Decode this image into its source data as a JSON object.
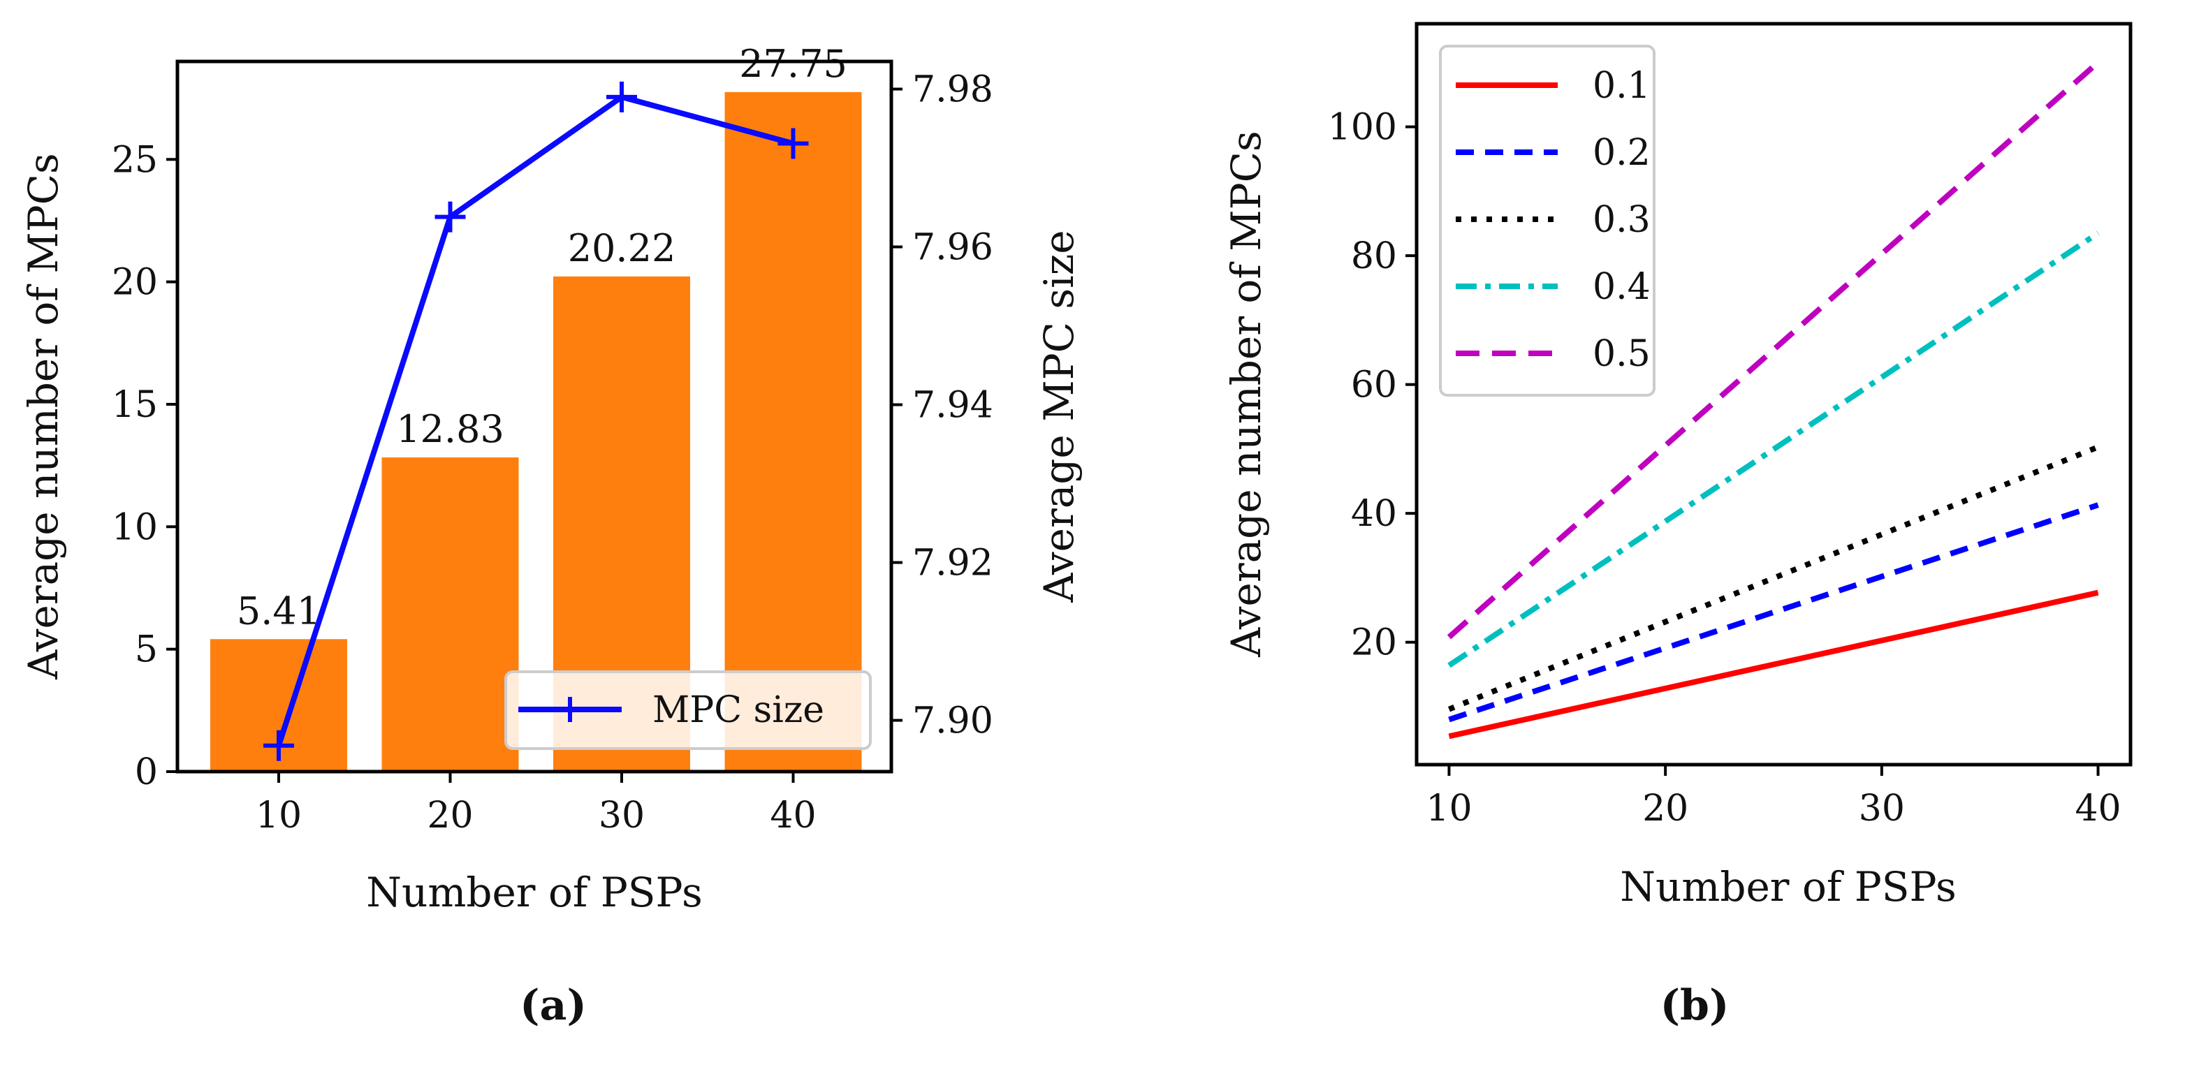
{
  "colors": {
    "bar": "#ff7f0e",
    "mpc_line": "#0a0aff",
    "axis": "#000000"
  },
  "chart_data": [
    {
      "type": "bar",
      "subcaption": "(a)",
      "categories": [
        "10",
        "20",
        "30",
        "40"
      ],
      "values": [
        5.41,
        12.83,
        20.22,
        27.75
      ],
      "data_labels": [
        "5.41",
        "12.83",
        "20.22",
        "27.75"
      ],
      "xlabel": "Number of PSPs",
      "ylabel": "Average number of MPCs",
      "ylim": [
        0,
        29
      ],
      "yticks": [
        0,
        5,
        10,
        15,
        20,
        25
      ],
      "bar_color": "#ff7f0e",
      "secondary_series": {
        "type": "line",
        "name": "MPC size",
        "x": [
          "10",
          "20",
          "30",
          "40"
        ],
        "values": [
          7.8968,
          7.9638,
          7.979,
          7.9731
        ],
        "marker": "+",
        "color": "#0a0aff",
        "ylabel": "Average MPC size",
        "ylim": [
          7.8935,
          7.9835
        ],
        "yticks": [
          "7.90",
          "7.92",
          "7.94",
          "7.96",
          "7.98"
        ],
        "ytick_values": [
          7.9,
          7.92,
          7.94,
          7.96,
          7.98
        ]
      },
      "legend": {
        "placement": "lower-right",
        "entries": [
          "MPC size"
        ]
      }
    },
    {
      "type": "line",
      "subcaption": "(b)",
      "x": [
        10,
        40
      ],
      "series": [
        {
          "name": "0.1",
          "values": [
            5.4,
            27.7
          ],
          "color": "#ff0000",
          "style": "solid"
        },
        {
          "name": "0.2",
          "values": [
            8.0,
            41.3
          ],
          "color": "#0000ff",
          "style": "dashed"
        },
        {
          "name": "0.3",
          "values": [
            9.6,
            50.3
          ],
          "color": "#000000",
          "style": "dotted"
        },
        {
          "name": "0.4",
          "values": [
            16.4,
            83.5
          ],
          "color": "#00bfbf",
          "style": "dashdot"
        },
        {
          "name": "0.5",
          "values": [
            20.8,
            110.0
          ],
          "color": "#bf00bf",
          "style": "longdash"
        }
      ],
      "xlabel": "Number of PSPs",
      "ylabel": "Average number of MPCs",
      "xlim": [
        8.5,
        41.5
      ],
      "ylim": [
        1,
        116
      ],
      "xticks": [
        10,
        20,
        30,
        40
      ],
      "yticks": [
        20,
        40,
        60,
        80,
        100
      ],
      "legend": {
        "placement": "top-left",
        "entries": [
          "0.1",
          "0.2",
          "0.3",
          "0.4",
          "0.5"
        ]
      }
    }
  ]
}
